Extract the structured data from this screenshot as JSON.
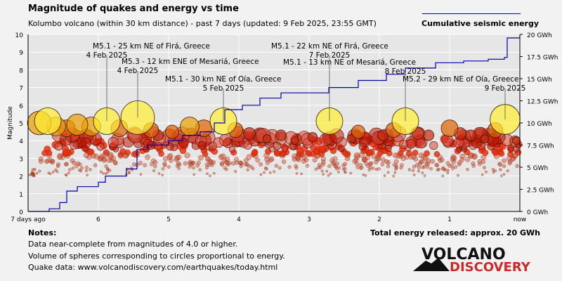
{
  "header": {
    "title": "Magnitude of quakes and energy vs time",
    "subtitle": "Kolumbo volcano (within 30 km distance) - past 7 days (updated: 9 Feb 2025, 23:55 GMT)",
    "legend": "Cumulative seismic energy"
  },
  "notes": {
    "heading": "Notes:",
    "lines": [
      "Data near-complete from magnitudes of 4.0 or higher.",
      "Volume of spheres corresponding to circles proportional to energy.",
      "Quake data: www.volcanodiscovery.com/earthquakes/today.html"
    ],
    "total_energy": "Total energy released: approx. 20 GWh"
  },
  "logo": {
    "line1": "VOLCANO",
    "line2": "DISCOVERY"
  },
  "colors": {
    "energy_line": "#0000aa",
    "background": "#f2f2f2",
    "grid": "#ffffff",
    "quake_small": "#cc3300",
    "quake_large": "#ffee00",
    "logo_red": "#cc2a2a"
  },
  "chart_data": {
    "type": "scatter",
    "ylabel": "Magnitude",
    "ylim": [
      0,
      10
    ],
    "y2lim": [
      0,
      20
    ],
    "y2_unit": "GWh",
    "xlim_days_ago": [
      7,
      0
    ],
    "x_ticks": [
      "7 days ago",
      "6",
      "5",
      "4",
      "3",
      "2",
      "1",
      "now"
    ],
    "y_ticks": [
      "0",
      "1",
      "2",
      "3",
      "4",
      "5",
      "6",
      "7",
      "8",
      "9",
      "10"
    ],
    "y2_ticks": [
      "0 GWh",
      "2.5 GWh",
      "5 GWh",
      "7.5 GWh",
      "10 GWh",
      "12.5 GWh",
      "15 GWh",
      "17.5 GWh",
      "20 GWh"
    ],
    "grid": true,
    "labeled_quakes": [
      {
        "days_ago": 5.88,
        "magnitude": 5.1,
        "label": "M5.1 - 25 km NE of Firá, Greece",
        "date": "4 Feb 2025"
      },
      {
        "days_ago": 5.44,
        "magnitude": 5.3,
        "label": "M5.3 - 12 km ENE of Mesariá, Greece",
        "date": "4 Feb 2025"
      },
      {
        "days_ago": 4.22,
        "magnitude": 5.1,
        "label": "M5.1 - 30 km NE of Oía, Greece",
        "date": "5 Feb 2025"
      },
      {
        "days_ago": 2.71,
        "magnitude": 5.1,
        "label": "M5.1 - 22 km NE of Firá, Greece",
        "date": "7 Feb 2025"
      },
      {
        "days_ago": 1.63,
        "magnitude": 5.1,
        "label": "M5.1 - 13 km NE of Mesariá, Greece",
        "date": "8 Feb 2025"
      },
      {
        "days_ago": 0.21,
        "magnitude": 5.2,
        "label": "M5.2 - 29 km NE of Oía, Greece",
        "date": "9 Feb 2025"
      }
    ],
    "energy_series": {
      "name": "Cumulative seismic energy",
      "days_ago": [
        7.0,
        6.7,
        6.55,
        6.45,
        6.3,
        6.0,
        5.9,
        5.6,
        5.45,
        5.3,
        5.0,
        4.8,
        4.55,
        4.35,
        4.2,
        3.95,
        3.7,
        3.4,
        2.72,
        2.3,
        1.9,
        1.63,
        1.2,
        0.8,
        0.45,
        0.22,
        0.18,
        0.0
      ],
      "gwh": [
        0.0,
        0.3,
        1.0,
        2.3,
        2.8,
        3.3,
        4.0,
        4.8,
        7.0,
        7.5,
        8.0,
        8.6,
        9.0,
        10.0,
        11.5,
        12.0,
        12.8,
        13.4,
        14.0,
        14.8,
        15.5,
        16.2,
        16.8,
        17.0,
        17.2,
        17.4,
        19.6,
        19.8
      ]
    },
    "large_quakes": [
      {
        "days_ago": 6.84,
        "magnitude": 5.0
      },
      {
        "days_ago": 6.72,
        "magnitude": 5.1
      },
      {
        "days_ago": 6.6,
        "magnitude": 4.8
      },
      {
        "days_ago": 6.45,
        "magnitude": 4.7
      },
      {
        "days_ago": 6.3,
        "magnitude": 4.9
      },
      {
        "days_ago": 6.1,
        "magnitude": 4.8
      },
      {
        "days_ago": 5.88,
        "magnitude": 5.1
      },
      {
        "days_ago": 5.7,
        "magnitude": 4.7
      },
      {
        "days_ago": 5.44,
        "magnitude": 5.3
      },
      {
        "days_ago": 5.25,
        "magnitude": 4.6
      },
      {
        "days_ago": 5.15,
        "magnitude": 4.3
      },
      {
        "days_ago": 4.95,
        "magnitude": 4.5
      },
      {
        "days_ago": 4.7,
        "magnitude": 4.8
      },
      {
        "days_ago": 4.5,
        "magnitude": 4.7
      },
      {
        "days_ago": 4.22,
        "magnitude": 5.1
      },
      {
        "days_ago": 4.05,
        "magnitude": 4.6
      },
      {
        "days_ago": 3.85,
        "magnitude": 4.4
      },
      {
        "days_ago": 3.6,
        "magnitude": 4.1
      },
      {
        "days_ago": 3.4,
        "magnitude": 4.3
      },
      {
        "days_ago": 3.2,
        "magnitude": 4.0
      },
      {
        "days_ago": 2.95,
        "magnitude": 4.2
      },
      {
        "days_ago": 2.71,
        "magnitude": 5.1
      },
      {
        "days_ago": 2.4,
        "magnitude": 4.1
      },
      {
        "days_ago": 2.3,
        "magnitude": 4.5
      },
      {
        "days_ago": 1.95,
        "magnitude": 4.3
      },
      {
        "days_ago": 1.8,
        "magnitude": 4.6
      },
      {
        "days_ago": 1.63,
        "magnitude": 5.1
      },
      {
        "days_ago": 1.45,
        "magnitude": 4.4
      },
      {
        "days_ago": 1.3,
        "magnitude": 4.3
      },
      {
        "days_ago": 1.0,
        "magnitude": 4.7
      },
      {
        "days_ago": 0.85,
        "magnitude": 4.4
      },
      {
        "days_ago": 0.7,
        "magnitude": 4.3
      },
      {
        "days_ago": 0.5,
        "magnitude": 4.1
      },
      {
        "days_ago": 0.35,
        "magnitude": 4.6
      },
      {
        "days_ago": 0.21,
        "magnitude": 5.2
      },
      {
        "days_ago": 0.05,
        "magnitude": 4.0
      }
    ],
    "small_quakes_summary": "several hundred events of magnitude 2–4 spread continuously over the 7 days"
  }
}
